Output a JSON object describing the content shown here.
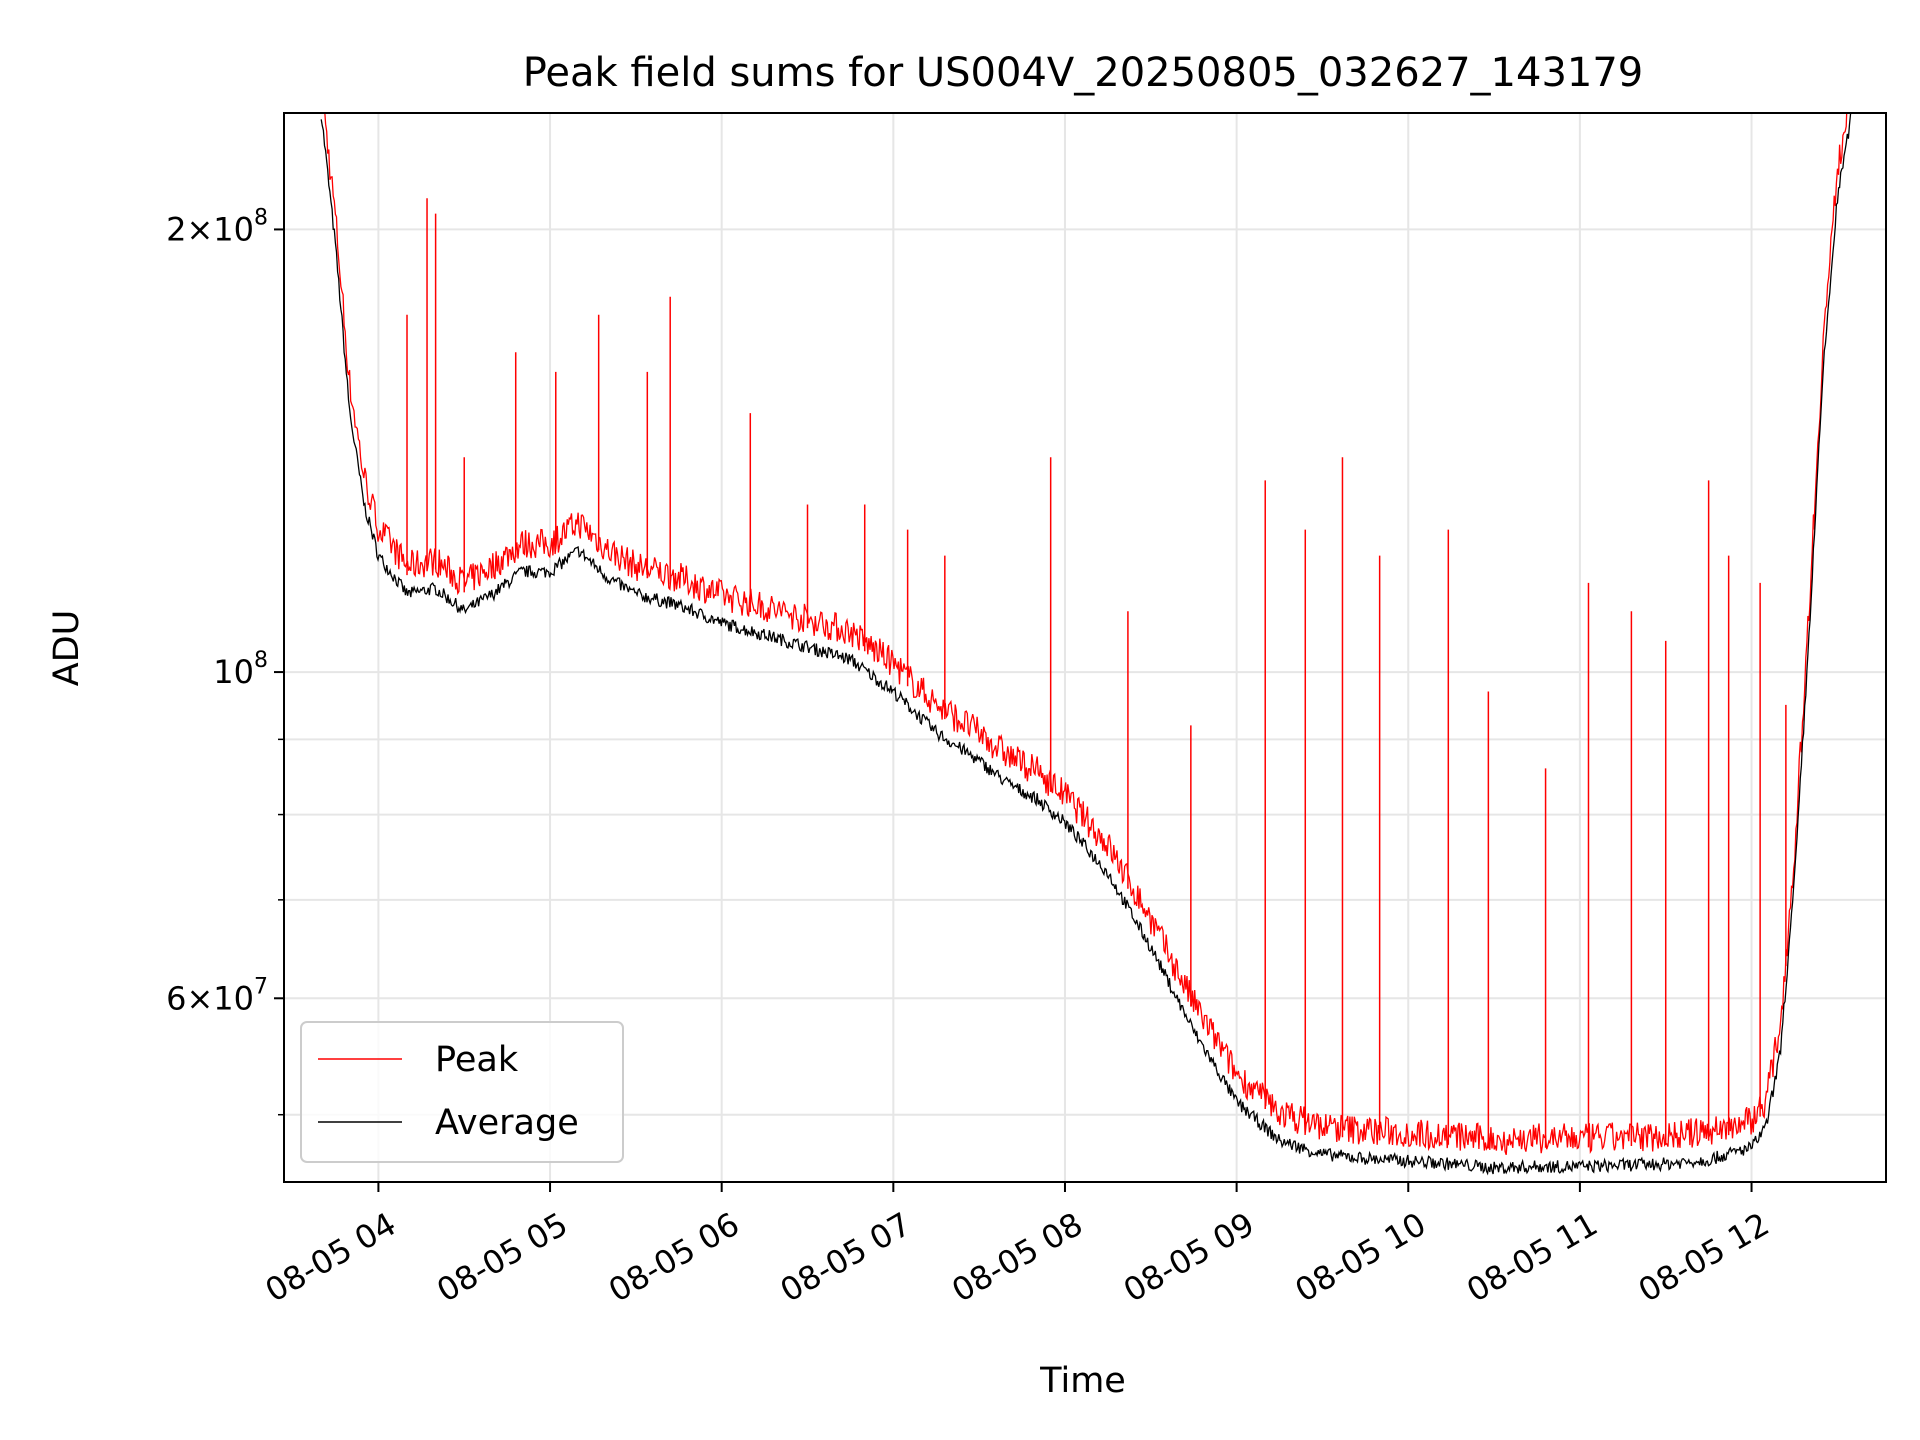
{
  "chart_data": {
    "type": "line",
    "title": "Peak field sums for US004V_20250805_032627_143179",
    "xlabel": "Time",
    "ylabel": "ADU",
    "y_scale": "log",
    "ylim": [
      45000000,
      240000000
    ],
    "xlim": [
      "2025-08-05T03:27:00",
      "2025-08-05T12:47:00"
    ],
    "grid": true,
    "legend_position": "lower-left",
    "x_ticks": [
      {
        "t": "2025-08-05T04:00:00",
        "label": "08-05 04"
      },
      {
        "t": "2025-08-05T05:00:00",
        "label": "08-05 05"
      },
      {
        "t": "2025-08-05T06:00:00",
        "label": "08-05 06"
      },
      {
        "t": "2025-08-05T07:00:00",
        "label": "08-05 07"
      },
      {
        "t": "2025-08-05T08:00:00",
        "label": "08-05 08"
      },
      {
        "t": "2025-08-05T09:00:00",
        "label": "08-05 09"
      },
      {
        "t": "2025-08-05T10:00:00",
        "label": "08-05 10"
      },
      {
        "t": "2025-08-05T11:00:00",
        "label": "08-05 11"
      },
      {
        "t": "2025-08-05T12:00:00",
        "label": "08-05 12"
      }
    ],
    "y_ticks_major": [
      {
        "value": 60000000,
        "mantissa": "6",
        "exponent": "7"
      },
      {
        "value": 100000000,
        "mantissa": "",
        "exponent": "8"
      },
      {
        "value": 200000000,
        "mantissa": "2",
        "exponent": "8"
      }
    ],
    "y_ticks_minor": [
      50000000,
      70000000,
      80000000,
      90000000
    ],
    "series": [
      {
        "name": "Average",
        "color": "#000000",
        "x": [
          "2025-08-05T03:40:00",
          "2025-08-05T03:45:00",
          "2025-08-05T03:50:00",
          "2025-08-05T03:55:00",
          "2025-08-05T04:00:00",
          "2025-08-05T04:10:00",
          "2025-08-05T04:20:00",
          "2025-08-05T04:30:00",
          "2025-08-05T04:40:00",
          "2025-08-05T04:50:00",
          "2025-08-05T05:00:00",
          "2025-08-05T05:10:00",
          "2025-08-05T05:20:00",
          "2025-08-05T05:30:00",
          "2025-08-05T05:45:00",
          "2025-08-05T06:00:00",
          "2025-08-05T06:15:00",
          "2025-08-05T06:30:00",
          "2025-08-05T06:45:00",
          "2025-08-05T07:00:00",
          "2025-08-05T07:15:00",
          "2025-08-05T07:30:00",
          "2025-08-05T07:40:00",
          "2025-08-05T07:50:00",
          "2025-08-05T08:00:00",
          "2025-08-05T08:15:00",
          "2025-08-05T08:30:00",
          "2025-08-05T08:45:00",
          "2025-08-05T09:00:00",
          "2025-08-05T09:15:00",
          "2025-08-05T09:30:00",
          "2025-08-05T09:45:00",
          "2025-08-05T10:00:00",
          "2025-08-05T10:15:00",
          "2025-08-05T10:30:00",
          "2025-08-05T10:45:00",
          "2025-08-05T11:00:00",
          "2025-08-05T11:15:00",
          "2025-08-05T11:30:00",
          "2025-08-05T11:45:00",
          "2025-08-05T12:00:00",
          "2025-08-05T12:05:00",
          "2025-08-05T12:10:00",
          "2025-08-05T12:15:00",
          "2025-08-05T12:20:00",
          "2025-08-05T12:25:00",
          "2025-08-05T12:30:00",
          "2025-08-05T12:35:00"
        ],
        "values": [
          240000000,
          195000000,
          150000000,
          130000000,
          120000000,
          113000000,
          114000000,
          110000000,
          113000000,
          117000000,
          117000000,
          121000000,
          116000000,
          113000000,
          111000000,
          108000000,
          106000000,
          104000000,
          102000000,
          97000000,
          91000000,
          87000000,
          84000000,
          82000000,
          79000000,
          73000000,
          65000000,
          57000000,
          51000000,
          48000000,
          47000000,
          46700000,
          46500000,
          46300000,
          46000000,
          46100000,
          46100000,
          46200000,
          46300000,
          46600000,
          47500000,
          49000000,
          55000000,
          72000000,
          105000000,
          160000000,
          210000000,
          240000000
        ]
      },
      {
        "name": "Peak",
        "color": "#ff0000",
        "x": [
          "2025-08-05T04:10:00",
          "2025-08-05T04:17:00",
          "2025-08-05T04:20:00",
          "2025-08-05T04:30:00",
          "2025-08-05T04:48:00",
          "2025-08-05T05:02:00",
          "2025-08-05T05:17:00",
          "2025-08-05T05:34:00",
          "2025-08-05T05:42:00",
          "2025-08-05T06:10:00",
          "2025-08-05T06:30:00",
          "2025-08-05T06:50:00",
          "2025-08-05T07:05:00",
          "2025-08-05T07:18:00",
          "2025-08-05T07:55:00",
          "2025-08-05T08:22:00",
          "2025-08-05T08:44:00",
          "2025-08-05T09:10:00",
          "2025-08-05T09:24:00",
          "2025-08-05T09:37:00",
          "2025-08-05T09:50:00",
          "2025-08-05T10:14:00",
          "2025-08-05T10:28:00",
          "2025-08-05T10:48:00",
          "2025-08-05T11:03:00",
          "2025-08-05T11:18:00",
          "2025-08-05T11:30:00",
          "2025-08-05T11:45:00",
          "2025-08-05T11:52:00",
          "2025-08-05T12:03:00",
          "2025-08-05T12:12:00",
          "2025-08-05T12:22:00"
        ],
        "values": [
          175000000,
          210000000,
          205000000,
          140000000,
          165000000,
          160000000,
          175000000,
          160000000,
          180000000,
          150000000,
          130000000,
          130000000,
          125000000,
          120000000,
          140000000,
          110000000,
          92000000,
          135000000,
          125000000,
          140000000,
          120000000,
          125000000,
          97000000,
          86000000,
          115000000,
          110000000,
          105000000,
          135000000,
          120000000,
          115000000,
          95000000,
          125000000
        ]
      }
    ]
  }
}
